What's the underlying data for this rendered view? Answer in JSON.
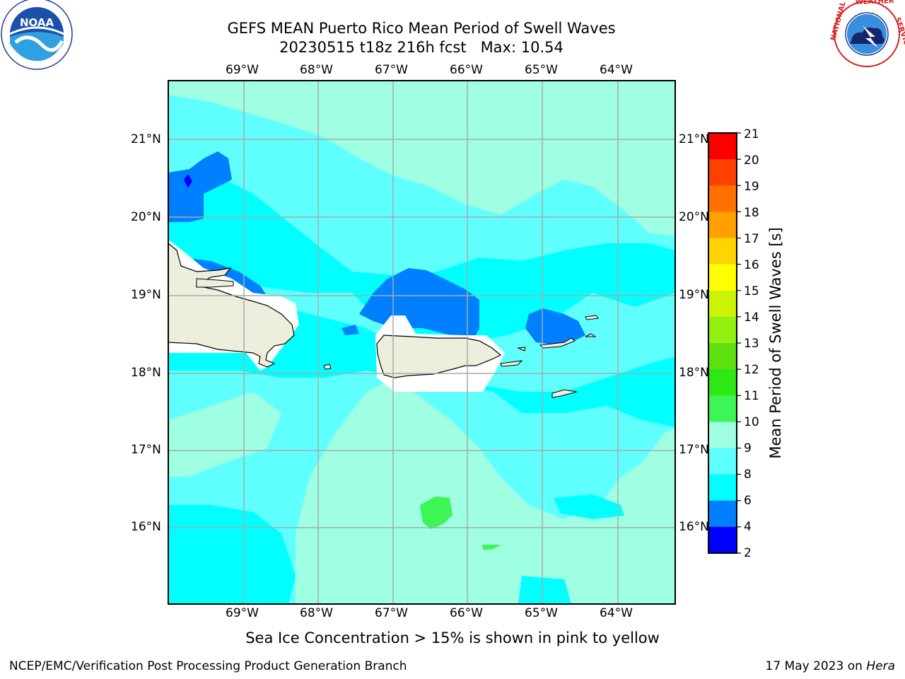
{
  "header": {
    "title_line1": "GEFS MEAN Puerto Rico Mean Period of Swell Waves",
    "title_line2": "20230515 t18z 216h fcst   Max: 10.54",
    "left_logo": "NOAA",
    "left_logo_ring_text": "NATIONAL OCEANIC AND ATMOSPHERIC ADMINISTRATION · U.S. DEPARTMENT OF COMMERCE",
    "right_logo_ring_text": "NATIONAL WEATHER SERVICE"
  },
  "map": {
    "lon_labels": [
      "69°W",
      "68°W",
      "67°W",
      "66°W",
      "65°W",
      "64°W"
    ],
    "lat_labels": [
      "21°N",
      "20°N",
      "19°N",
      "18°N",
      "17°N",
      "16°N"
    ]
  },
  "colorbar": {
    "title": "Mean Period of Swell Waves [s]",
    "tick_labels": [
      "21",
      "20",
      "19",
      "18",
      "17",
      "16",
      "15",
      "14",
      "13",
      "12",
      "11",
      "10",
      "9",
      "8",
      "6",
      "4",
      "2"
    ],
    "bins": [
      {
        "from": 2,
        "to": 4,
        "color": "#0000ff"
      },
      {
        "from": 4,
        "to": 6,
        "color": "#0080ff"
      },
      {
        "from": 6,
        "to": 8,
        "color": "#00ffff"
      },
      {
        "from": 8,
        "to": 9,
        "color": "#5ffffe"
      },
      {
        "from": 9,
        "to": 10,
        "color": "#9effe2"
      },
      {
        "from": 10,
        "to": 11,
        "color": "#3df555"
      },
      {
        "from": 11,
        "to": 12,
        "color": "#2de812"
      },
      {
        "from": 12,
        "to": 13,
        "color": "#5fe010"
      },
      {
        "from": 13,
        "to": 14,
        "color": "#93f010"
      },
      {
        "from": 14,
        "to": 15,
        "color": "#ccf205"
      },
      {
        "from": 15,
        "to": 16,
        "color": "#ffff00"
      },
      {
        "from": 16,
        "to": 17,
        "color": "#ffd400"
      },
      {
        "from": 17,
        "to": 18,
        "color": "#ffa000"
      },
      {
        "from": 18,
        "to": 19,
        "color": "#ff7000"
      },
      {
        "from": 19,
        "to": 20,
        "color": "#ff4000"
      },
      {
        "from": 20,
        "to": 21,
        "color": "#ff0000"
      }
    ]
  },
  "subtitle": "Sea Ice Concentration > 15% is shown in pink to yellow",
  "footer": {
    "left": "NCEP/EMC/Verification Post Processing Product Generation Branch",
    "right_date": "17 May 2023 on ",
    "right_host": "Hera"
  },
  "colors": {
    "land": "#eeeedc",
    "grid": "#aaaaaa",
    "coast": "#000000"
  }
}
